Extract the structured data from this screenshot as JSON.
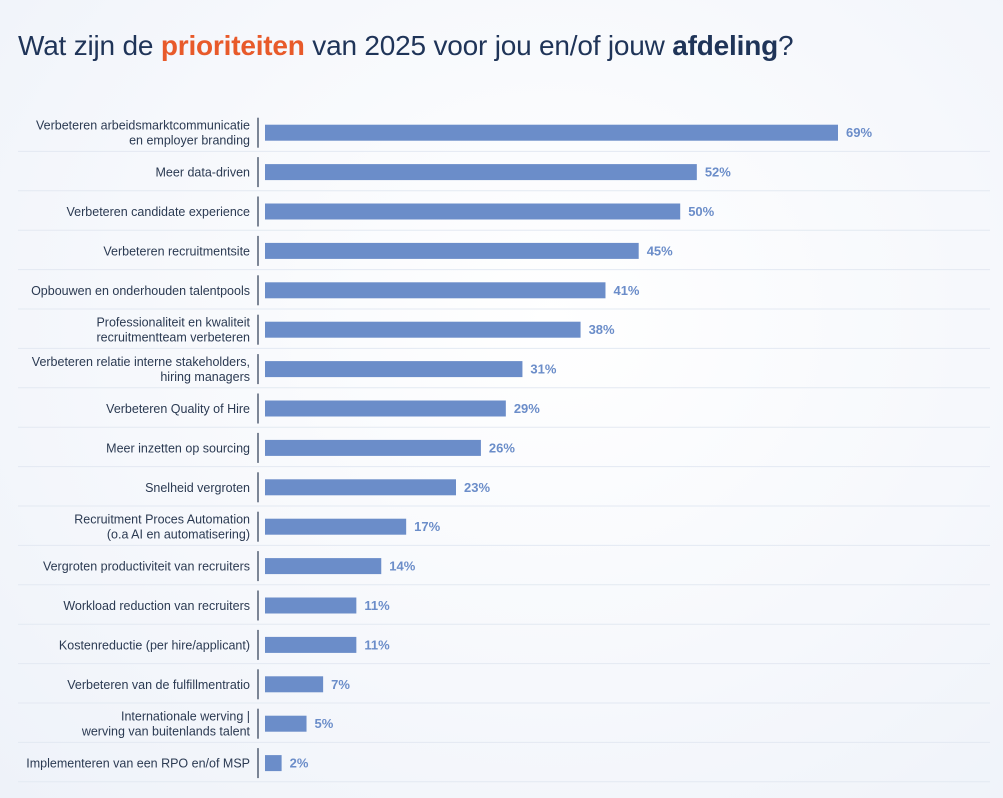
{
  "title": {
    "part1": "Wat zijn de ",
    "accent": "prioriteiten",
    "part2": " van 2025 voor jou en/of jouw ",
    "strong": "afdeling",
    "part3": "?"
  },
  "colors": {
    "bar": "#6b8dc9",
    "accent": "#e85a2a",
    "title": "#1f3458",
    "separator": "#e3e9f2",
    "axis": "#2b3a52"
  },
  "chart_data": {
    "type": "bar",
    "orientation": "horizontal",
    "unit": "%",
    "categories": [
      [
        "Verbeteren arbeidsmarktcommunicatie",
        "en employer branding"
      ],
      [
        "Meer data-driven"
      ],
      [
        "Verbeteren candidate experience"
      ],
      [
        "Verbeteren recruitmentsite"
      ],
      [
        "Opbouwen en onderhouden talentpools"
      ],
      [
        "Professionaliteit en kwaliteit",
        "recruitmentteam verbeteren"
      ],
      [
        "Verbeteren relatie interne stakeholders,",
        "hiring managers"
      ],
      [
        "Verbeteren Quality of Hire"
      ],
      [
        "Meer inzetten op sourcing"
      ],
      [
        "Snelheid vergroten"
      ],
      [
        "Recruitment Proces Automation",
        "(o.a AI en automatisering)"
      ],
      [
        "Vergroten productiviteit van recruiters"
      ],
      [
        "Workload reduction van recruiters"
      ],
      [
        "Kostenreductie (per hire/applicant)"
      ],
      [
        "Verbeteren van de fulfillmentratio"
      ],
      [
        "Internationale werving |",
        "werving van buitenlands talent"
      ],
      [
        "Implementeren van een RPO en/of MSP"
      ]
    ],
    "values": [
      69,
      52,
      50,
      45,
      41,
      38,
      31,
      29,
      26,
      23,
      17,
      14,
      11,
      11,
      7,
      5,
      2
    ],
    "value_labels": [
      "69%",
      "52%",
      "50%",
      "45%",
      "41%",
      "38%",
      "31%",
      "29%",
      "26%",
      "23%",
      "17%",
      "14%",
      "11%",
      "11%",
      "7%",
      "5%",
      "2%"
    ],
    "xlim": [
      0,
      69
    ],
    "grid": false,
    "legend": "none"
  }
}
